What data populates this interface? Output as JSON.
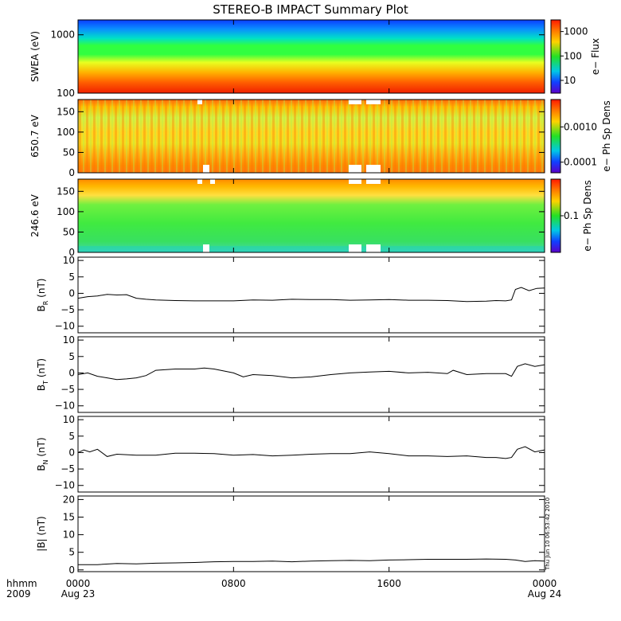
{
  "chart_data": {
    "title": "STEREO-B IMPACT Summary Plot",
    "type": "multi-panel time series",
    "time_axis": {
      "row1_label": "hhmm",
      "row2_label": "2009",
      "range_hours": [
        0,
        24
      ],
      "ticks": [
        {
          "hour": 0,
          "label": "0000",
          "date": "Aug 23"
        },
        {
          "hour": 8,
          "label": "0800",
          "date": ""
        },
        {
          "hour": 16,
          "label": "1600",
          "date": ""
        },
        {
          "hour": 24,
          "label": "0000",
          "date": "Aug 24"
        }
      ]
    },
    "timestamp": "Thu Jun 10 06:53:42 2010",
    "spectrograms": [
      {
        "id": "swea",
        "ylabel": "SWEA (eV)",
        "yscale": "log",
        "ylim": [
          100,
          1800
        ],
        "yticks": [
          {
            "value": 100,
            "label": "100"
          },
          {
            "value": 1000,
            "label": "1000"
          }
        ],
        "colorbar": {
          "label": "e− Flux",
          "scale": "log",
          "range": [
            3,
            3000
          ],
          "ticks": [
            {
              "value": 10,
              "label": "10"
            },
            {
              "value": 100,
              "label": "100"
            },
            {
              "value": 1000,
              "label": "1000"
            }
          ]
        }
      },
      {
        "id": "pad650",
        "ylabel": "650.7 eV",
        "yscale": "linear",
        "ylim": [
          0,
          180
        ],
        "yticks": [
          {
            "value": 0,
            "label": "0"
          },
          {
            "value": 50,
            "label": "50"
          },
          {
            "value": 100,
            "label": "100"
          },
          {
            "value": 150,
            "label": "150"
          }
        ],
        "colorbar": {
          "label": "e− Ph Sp Dens",
          "scale": "log",
          "range": [
            5e-05,
            0.006
          ],
          "ticks": [
            {
              "value": 0.0001,
              "label": "0.0001"
            },
            {
              "value": 0.001,
              "label": "0.0010"
            }
          ]
        }
      },
      {
        "id": "pad246",
        "ylabel": "246.6 eV",
        "yscale": "linear",
        "ylim": [
          0,
          180
        ],
        "yticks": [
          {
            "value": 0,
            "label": "0"
          },
          {
            "value": 50,
            "label": "50"
          },
          {
            "value": 100,
            "label": "100"
          },
          {
            "value": 150,
            "label": "150"
          }
        ],
        "colorbar": {
          "label": "e− Ph Sp Dens",
          "scale": "log",
          "range": [
            0.02,
            0.5
          ],
          "ticks": [
            {
              "value": 0.1,
              "label": "0.1"
            }
          ]
        }
      }
    ],
    "line_panels": [
      {
        "id": "br",
        "ylabel_main": "B",
        "ylabel_sub": "R",
        "ylabel_unit": " (nT)",
        "ylim": [
          -12,
          11
        ],
        "yticks": [
          {
            "value": -10,
            "label": "−10"
          },
          {
            "value": -5,
            "label": "−5"
          },
          {
            "value": 0,
            "label": "0"
          },
          {
            "value": 5,
            "label": "5"
          },
          {
            "value": 10,
            "label": "10"
          }
        ],
        "x": [
          0,
          0.5,
          1,
          1.5,
          2,
          2.5,
          3,
          3.5,
          4,
          5,
          6,
          7,
          8,
          9,
          10,
          11,
          12,
          13,
          14,
          15,
          16,
          17,
          18,
          19,
          20,
          21,
          21.5,
          22,
          22.3,
          22.5,
          22.8,
          23.2,
          23.6,
          24
        ],
        "y": [
          -1.5,
          -1.0,
          -0.8,
          -0.3,
          -0.5,
          -0.4,
          -1.5,
          -1.8,
          -2.0,
          -2.2,
          -2.3,
          -2.3,
          -2.3,
          -2.0,
          -2.1,
          -1.8,
          -1.9,
          -1.9,
          -2.1,
          -2.0,
          -1.9,
          -2.1,
          -2.1,
          -2.2,
          -2.5,
          -2.4,
          -2.2,
          -2.3,
          -2.0,
          1.2,
          1.8,
          0.8,
          1.5,
          1.6
        ]
      },
      {
        "id": "bt",
        "ylabel_main": "B",
        "ylabel_sub": "T",
        "ylabel_unit": " (nT)",
        "ylim": [
          -12,
          11
        ],
        "yticks": [
          {
            "value": -10,
            "label": "−10"
          },
          {
            "value": -5,
            "label": "−5"
          },
          {
            "value": 0,
            "label": "0"
          },
          {
            "value": 5,
            "label": "5"
          },
          {
            "value": 10,
            "label": "10"
          }
        ],
        "x": [
          0,
          0.5,
          1,
          1.5,
          2,
          2.5,
          3,
          3.5,
          4,
          5,
          6,
          6.5,
          7,
          8,
          8.5,
          9,
          10,
          11,
          12,
          13,
          14,
          15,
          16,
          17,
          18,
          19,
          19.3,
          20,
          21,
          22,
          22.3,
          22.6,
          23,
          23.5,
          24
        ],
        "y": [
          -0.5,
          0.0,
          -1.0,
          -1.5,
          -2.0,
          -1.8,
          -1.5,
          -0.8,
          0.8,
          1.2,
          1.2,
          1.5,
          1.2,
          0.0,
          -1.2,
          -0.5,
          -0.8,
          -1.5,
          -1.2,
          -0.5,
          0.0,
          0.3,
          0.5,
          0.0,
          0.2,
          -0.2,
          0.8,
          -0.5,
          -0.2,
          -0.2,
          -1.0,
          2.0,
          2.8,
          2.0,
          2.5
        ]
      },
      {
        "id": "bn",
        "ylabel_main": "B",
        "ylabel_sub": "N",
        "ylabel_unit": " (nT)",
        "ylim": [
          -12,
          11
        ],
        "yticks": [
          {
            "value": -10,
            "label": "−10"
          },
          {
            "value": -5,
            "label": "−5"
          },
          {
            "value": 0,
            "label": "0"
          },
          {
            "value": 5,
            "label": "5"
          },
          {
            "value": 10,
            "label": "10"
          }
        ],
        "x": [
          0,
          0.3,
          0.6,
          1,
          1.5,
          2,
          3,
          4,
          5,
          6,
          7,
          8,
          9,
          10,
          11,
          12,
          13,
          14,
          15,
          16,
          17,
          18,
          19,
          20,
          21,
          21.5,
          22,
          22.3,
          22.6,
          23,
          23.5,
          24
        ],
        "y": [
          0.0,
          0.8,
          0.2,
          1.0,
          -1.2,
          -0.5,
          -0.8,
          -0.8,
          -0.2,
          -0.2,
          -0.3,
          -0.8,
          -0.6,
          -1.0,
          -0.8,
          -0.5,
          -0.3,
          -0.3,
          0.2,
          -0.3,
          -1.0,
          -1.0,
          -1.2,
          -1.0,
          -1.5,
          -1.5,
          -1.8,
          -1.5,
          1.0,
          1.8,
          0.2,
          0.8
        ]
      },
      {
        "id": "bmag",
        "ylabel_main": "|B| (nT)",
        "ylabel_sub": "",
        "ylabel_unit": "",
        "ylim": [
          -0.5,
          21
        ],
        "yticks": [
          {
            "value": 0,
            "label": "0"
          },
          {
            "value": 5,
            "label": "5"
          },
          {
            "value": 10,
            "label": "10"
          },
          {
            "value": 15,
            "label": "15"
          },
          {
            "value": 20,
            "label": "20"
          }
        ],
        "x": [
          0,
          1,
          2,
          3,
          4,
          5,
          6,
          7,
          8,
          9,
          10,
          11,
          12,
          13,
          14,
          15,
          16,
          17,
          18,
          19,
          20,
          21,
          22,
          22.5,
          23,
          23.5,
          24
        ],
        "y": [
          1.5,
          1.5,
          1.8,
          1.7,
          1.9,
          2.0,
          2.1,
          2.3,
          2.4,
          2.4,
          2.5,
          2.3,
          2.5,
          2.6,
          2.7,
          2.6,
          2.8,
          2.9,
          3.0,
          3.0,
          3.0,
          3.1,
          3.0,
          2.8,
          2.4,
          2.6,
          2.5
        ]
      }
    ]
  }
}
